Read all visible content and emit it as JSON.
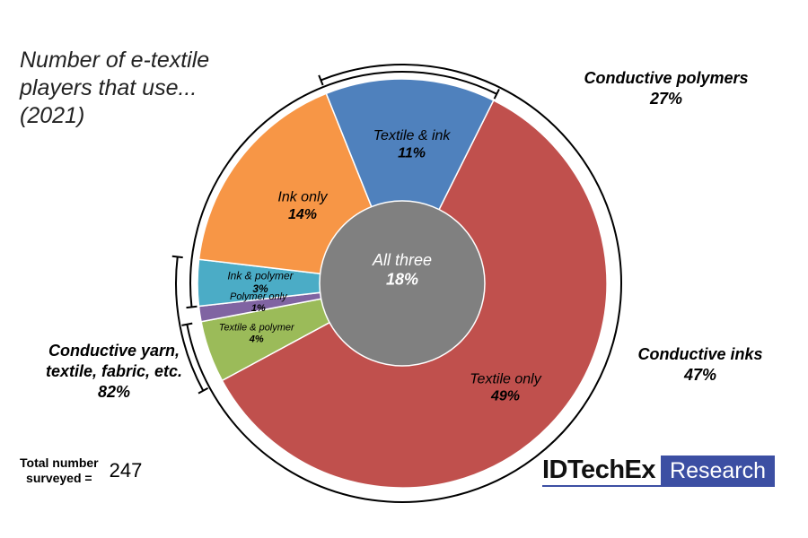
{
  "title_lines": [
    "Number of e-textile",
    "players that use...",
    "(2021)"
  ],
  "chart_data": {
    "type": "pie",
    "slices": [
      {
        "label": "Textile only",
        "value": 49,
        "display": "49%",
        "color": "#c0504d"
      },
      {
        "label": "Textile & polymer",
        "value": 4,
        "display": "4%",
        "color": "#9bbb59"
      },
      {
        "label": "Polymer only",
        "value": 1,
        "display": "1%",
        "color": "#8064a2"
      },
      {
        "label": "Ink & polymer",
        "value": 3,
        "display": "3%",
        "color": "#4bacc6"
      },
      {
        "label": "Ink only",
        "value": 14,
        "display": "14%",
        "color": "#f79646"
      },
      {
        "label": "Textile & ink",
        "value": 11,
        "display": "11%",
        "color": "#4f81bd"
      }
    ],
    "center": {
      "label": "All three",
      "display": "18%",
      "color": "#808080"
    },
    "groups": [
      {
        "name": "Conductive polymers",
        "display": "27%"
      },
      {
        "name_lines": [
          "Conductive yarn,",
          "textile, fabric, etc."
        ],
        "display": "82%"
      },
      {
        "name": "Conductive inks",
        "display": "47%"
      }
    ]
  },
  "total": {
    "label_lines": [
      "Total number",
      "surveyed ="
    ],
    "value": "247"
  },
  "brand": {
    "name": "IDTechEx",
    "tag": "Research",
    "tag_color": "#3c4fa3"
  }
}
